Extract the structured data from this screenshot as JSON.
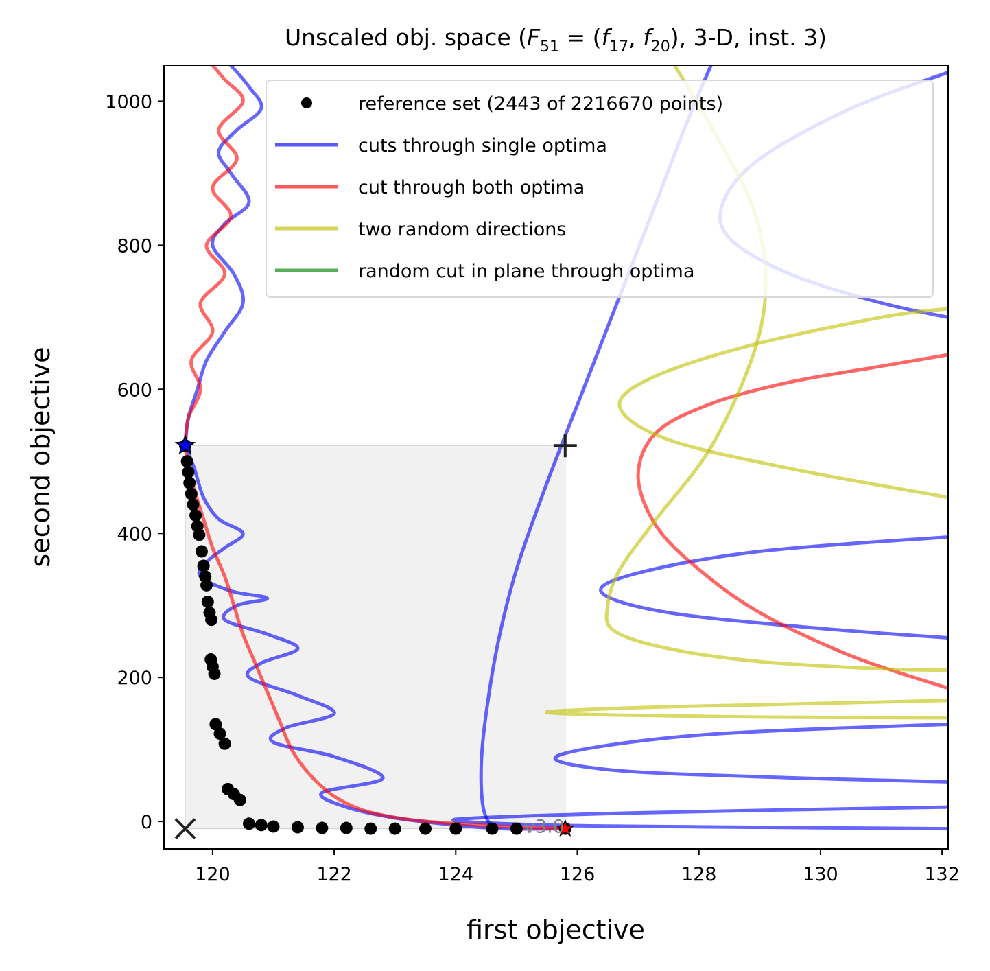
{
  "chart_data": {
    "type": "line",
    "title": "Unscaled obj. space (F₅₁ = (f₁₇, f₂₀), 3-D, inst. 3)",
    "title_parts": {
      "prefix": "Unscaled obj. space (",
      "func_main": "F",
      "func_sub": "51",
      "eq": " = (",
      "f1_main": "f",
      "f1_sub": "17",
      "sep": ", ",
      "f2_main": "f",
      "f2_sub": "20",
      "suffix": "), 3-D, inst. 3)"
    },
    "xlabel": "first objective",
    "ylabel": "second objective",
    "xlim": [
      119.2,
      132.1
    ],
    "ylim": [
      -38,
      1050
    ],
    "xticks": [
      120,
      122,
      124,
      126,
      128,
      130,
      132
    ],
    "yticks": [
      0,
      200,
      400,
      600,
      800,
      1000
    ],
    "grid": false,
    "legend_position": "upper-right",
    "legend": [
      {
        "label": "reference set (2443 of 2216670 points)",
        "kind": "marker",
        "color": "#000000"
      },
      {
        "label": "cuts through single optima",
        "kind": "line",
        "color": "#0000ff"
      },
      {
        "label": "cut through both optima",
        "kind": "line",
        "color": "#ff0000"
      },
      {
        "label": "two random directions",
        "kind": "line",
        "color": "#bfbf00"
      },
      {
        "label": "random cut in plane through optima",
        "kind": "line",
        "color": "#008000"
      }
    ],
    "annotation": "v3.0",
    "dominated_region": {
      "x": [
        119.55,
        125.8
      ],
      "y": [
        -10,
        522
      ]
    },
    "ideal_point": [
      119.55,
      -10
    ],
    "nadir_point": [
      125.8,
      522
    ],
    "optimum_1": [
      119.55,
      522
    ],
    "optimum_2": [
      125.8,
      -10
    ],
    "reference_set": [
      [
        119.55,
        522
      ],
      [
        119.58,
        500
      ],
      [
        119.6,
        485
      ],
      [
        119.62,
        470
      ],
      [
        119.65,
        455
      ],
      [
        119.68,
        440
      ],
      [
        119.72,
        425
      ],
      [
        119.75,
        410
      ],
      [
        119.78,
        398
      ],
      [
        119.82,
        375
      ],
      [
        119.85,
        355
      ],
      [
        119.88,
        340
      ],
      [
        119.9,
        328
      ],
      [
        119.92,
        305
      ],
      [
        119.95,
        290
      ],
      [
        119.98,
        280
      ],
      [
        119.97,
        225
      ],
      [
        120.0,
        215
      ],
      [
        120.03,
        205
      ],
      [
        120.05,
        135
      ],
      [
        120.12,
        122
      ],
      [
        120.2,
        108
      ],
      [
        120.25,
        45
      ],
      [
        120.35,
        38
      ],
      [
        120.45,
        30
      ],
      [
        120.6,
        -3
      ],
      [
        120.8,
        -5
      ],
      [
        121.0,
        -7
      ],
      [
        121.4,
        -8
      ],
      [
        121.8,
        -9
      ],
      [
        122.2,
        -9
      ],
      [
        122.6,
        -10
      ],
      [
        123.0,
        -10
      ],
      [
        123.5,
        -10
      ],
      [
        124.0,
        -10
      ],
      [
        124.6,
        -10
      ],
      [
        125.0,
        -10
      ],
      [
        125.8,
        -10
      ]
    ],
    "series": [
      {
        "name": "cuts through single optima",
        "color": "#0000ff",
        "x": [
          119.55,
          119.7,
          119.85,
          120.1,
          120.5,
          120.2,
          119.9,
          119.8,
          120.3,
          120.9,
          120.4,
          120.2,
          120.9,
          121.4,
          120.8,
          120.6,
          121.4,
          122.0,
          121.2,
          121.0,
          122.0,
          122.8,
          121.8,
          122.2,
          123.0,
          124.0,
          124.8,
          125.8
        ],
        "y": [
          522,
          490,
          450,
          420,
          400,
          380,
          360,
          340,
          320,
          310,
          300,
          280,
          260,
          240,
          220,
          200,
          175,
          150,
          130,
          110,
          90,
          60,
          40,
          20,
          5,
          -5,
          -10,
          -10
        ]
      },
      {
        "name": "cuts through single optima",
        "color": "#0000ff",
        "x": [
          119.55,
          119.6,
          119.75,
          119.9,
          120.2,
          120.5,
          120.35,
          120.0,
          120.2,
          120.6,
          120.3,
          120.1,
          120.4,
          120.8,
          120.6,
          120.3
        ],
        "y": [
          522,
          560,
          600,
          640,
          680,
          720,
          760,
          800,
          830,
          860,
          900,
          930,
          960,
          990,
          1020,
          1050
        ]
      },
      {
        "name": "cuts through single optima",
        "color": "#0000ff",
        "x": [
          124.6,
          124.45,
          124.42,
          124.5,
          124.7,
          125.0,
          125.5,
          126.1,
          126.7,
          127.3,
          127.8,
          128.2
        ],
        "y": [
          -10,
          20,
          80,
          150,
          250,
          350,
          470,
          600,
          730,
          860,
          970,
          1050
        ]
      },
      {
        "name": "cuts through single optima",
        "color": "#0000ff",
        "x": [
          132.1,
          130.5,
          129.0,
          128.4,
          128.5,
          129.5,
          131.0,
          132.1
        ],
        "y": [
          1040,
          990,
          920,
          860,
          810,
          760,
          720,
          700
        ]
      },
      {
        "name": "cuts through single optima",
        "color": "#0000ff",
        "x": [
          132.1,
          129.0,
          127.0,
          126.4,
          127.5,
          130.0,
          132.1
        ],
        "y": [
          395,
          375,
          345,
          318,
          290,
          268,
          255
        ]
      },
      {
        "name": "cuts through single optima",
        "color": "#0000ff",
        "x": [
          132.1,
          128.0,
          125.7,
          126.5,
          129.0,
          132.1
        ],
        "y": [
          135,
          120,
          92,
          72,
          62,
          55
        ]
      },
      {
        "name": "cuts through single optima",
        "color": "#0000ff",
        "x": [
          132.1,
          127.0,
          124.0,
          125.5,
          129.0,
          132.1
        ],
        "y": [
          20,
          12,
          3,
          -5,
          -8,
          -10
        ]
      },
      {
        "name": "cut through both optima",
        "color": "#ff0000",
        "x": [
          119.55,
          119.6,
          119.7,
          119.85,
          120.0,
          120.2,
          120.35,
          120.5,
          120.7,
          120.9,
          121.1,
          121.3,
          121.6,
          122.0,
          122.5,
          123.2,
          124.0,
          124.8,
          125.8
        ],
        "y": [
          522,
          490,
          460,
          420,
          380,
          340,
          300,
          260,
          220,
          180,
          140,
          100,
          65,
          35,
          15,
          3,
          -3,
          -7,
          -10
        ]
      },
      {
        "name": "cut through both optima",
        "color": "#ff0000",
        "x": [
          119.55,
          119.6,
          119.8,
          119.65,
          120.0,
          119.8,
          120.2,
          119.9,
          120.3,
          120.0,
          120.4,
          120.1,
          120.5,
          120.2,
          120.0
        ],
        "y": [
          522,
          560,
          600,
          640,
          680,
          720,
          760,
          800,
          840,
          880,
          920,
          960,
          1000,
          1030,
          1050
        ]
      },
      {
        "name": "cut through both optima",
        "color": "#ff0000",
        "x": [
          132.1,
          130.5,
          129.0,
          128.0,
          127.3,
          127.0,
          127.3,
          128.2,
          129.5,
          131.0,
          132.1
        ],
        "y": [
          185,
          230,
          290,
          350,
          410,
          480,
          540,
          580,
          610,
          632,
          648
        ]
      },
      {
        "name": "two random directions",
        "color": "#bfbf00",
        "x": [
          127.6,
          128.3,
          128.9,
          129.1,
          128.9,
          128.2,
          127.3,
          126.7,
          126.5,
          126.6,
          127.5,
          129.0,
          131.0,
          132.1
        ],
        "y": [
          1050,
          950,
          850,
          750,
          650,
          520,
          420,
          350,
          300,
          265,
          240,
          222,
          212,
          210
        ]
      },
      {
        "name": "two random directions",
        "color": "#bfbf00",
        "x": [
          132.1,
          129.5,
          127.5,
          126.7,
          127.2,
          128.8,
          131.0,
          132.1
        ],
        "y": [
          450,
          490,
          530,
          575,
          615,
          660,
          700,
          712
        ]
      },
      {
        "name": "two random directions",
        "color": "#bfbf00",
        "x": [
          132.1,
          129.0,
          127.0,
          125.5,
          126.5,
          129.0,
          132.1
        ],
        "y": [
          168,
          162,
          158,
          152,
          148,
          145,
          144
        ]
      }
    ]
  }
}
